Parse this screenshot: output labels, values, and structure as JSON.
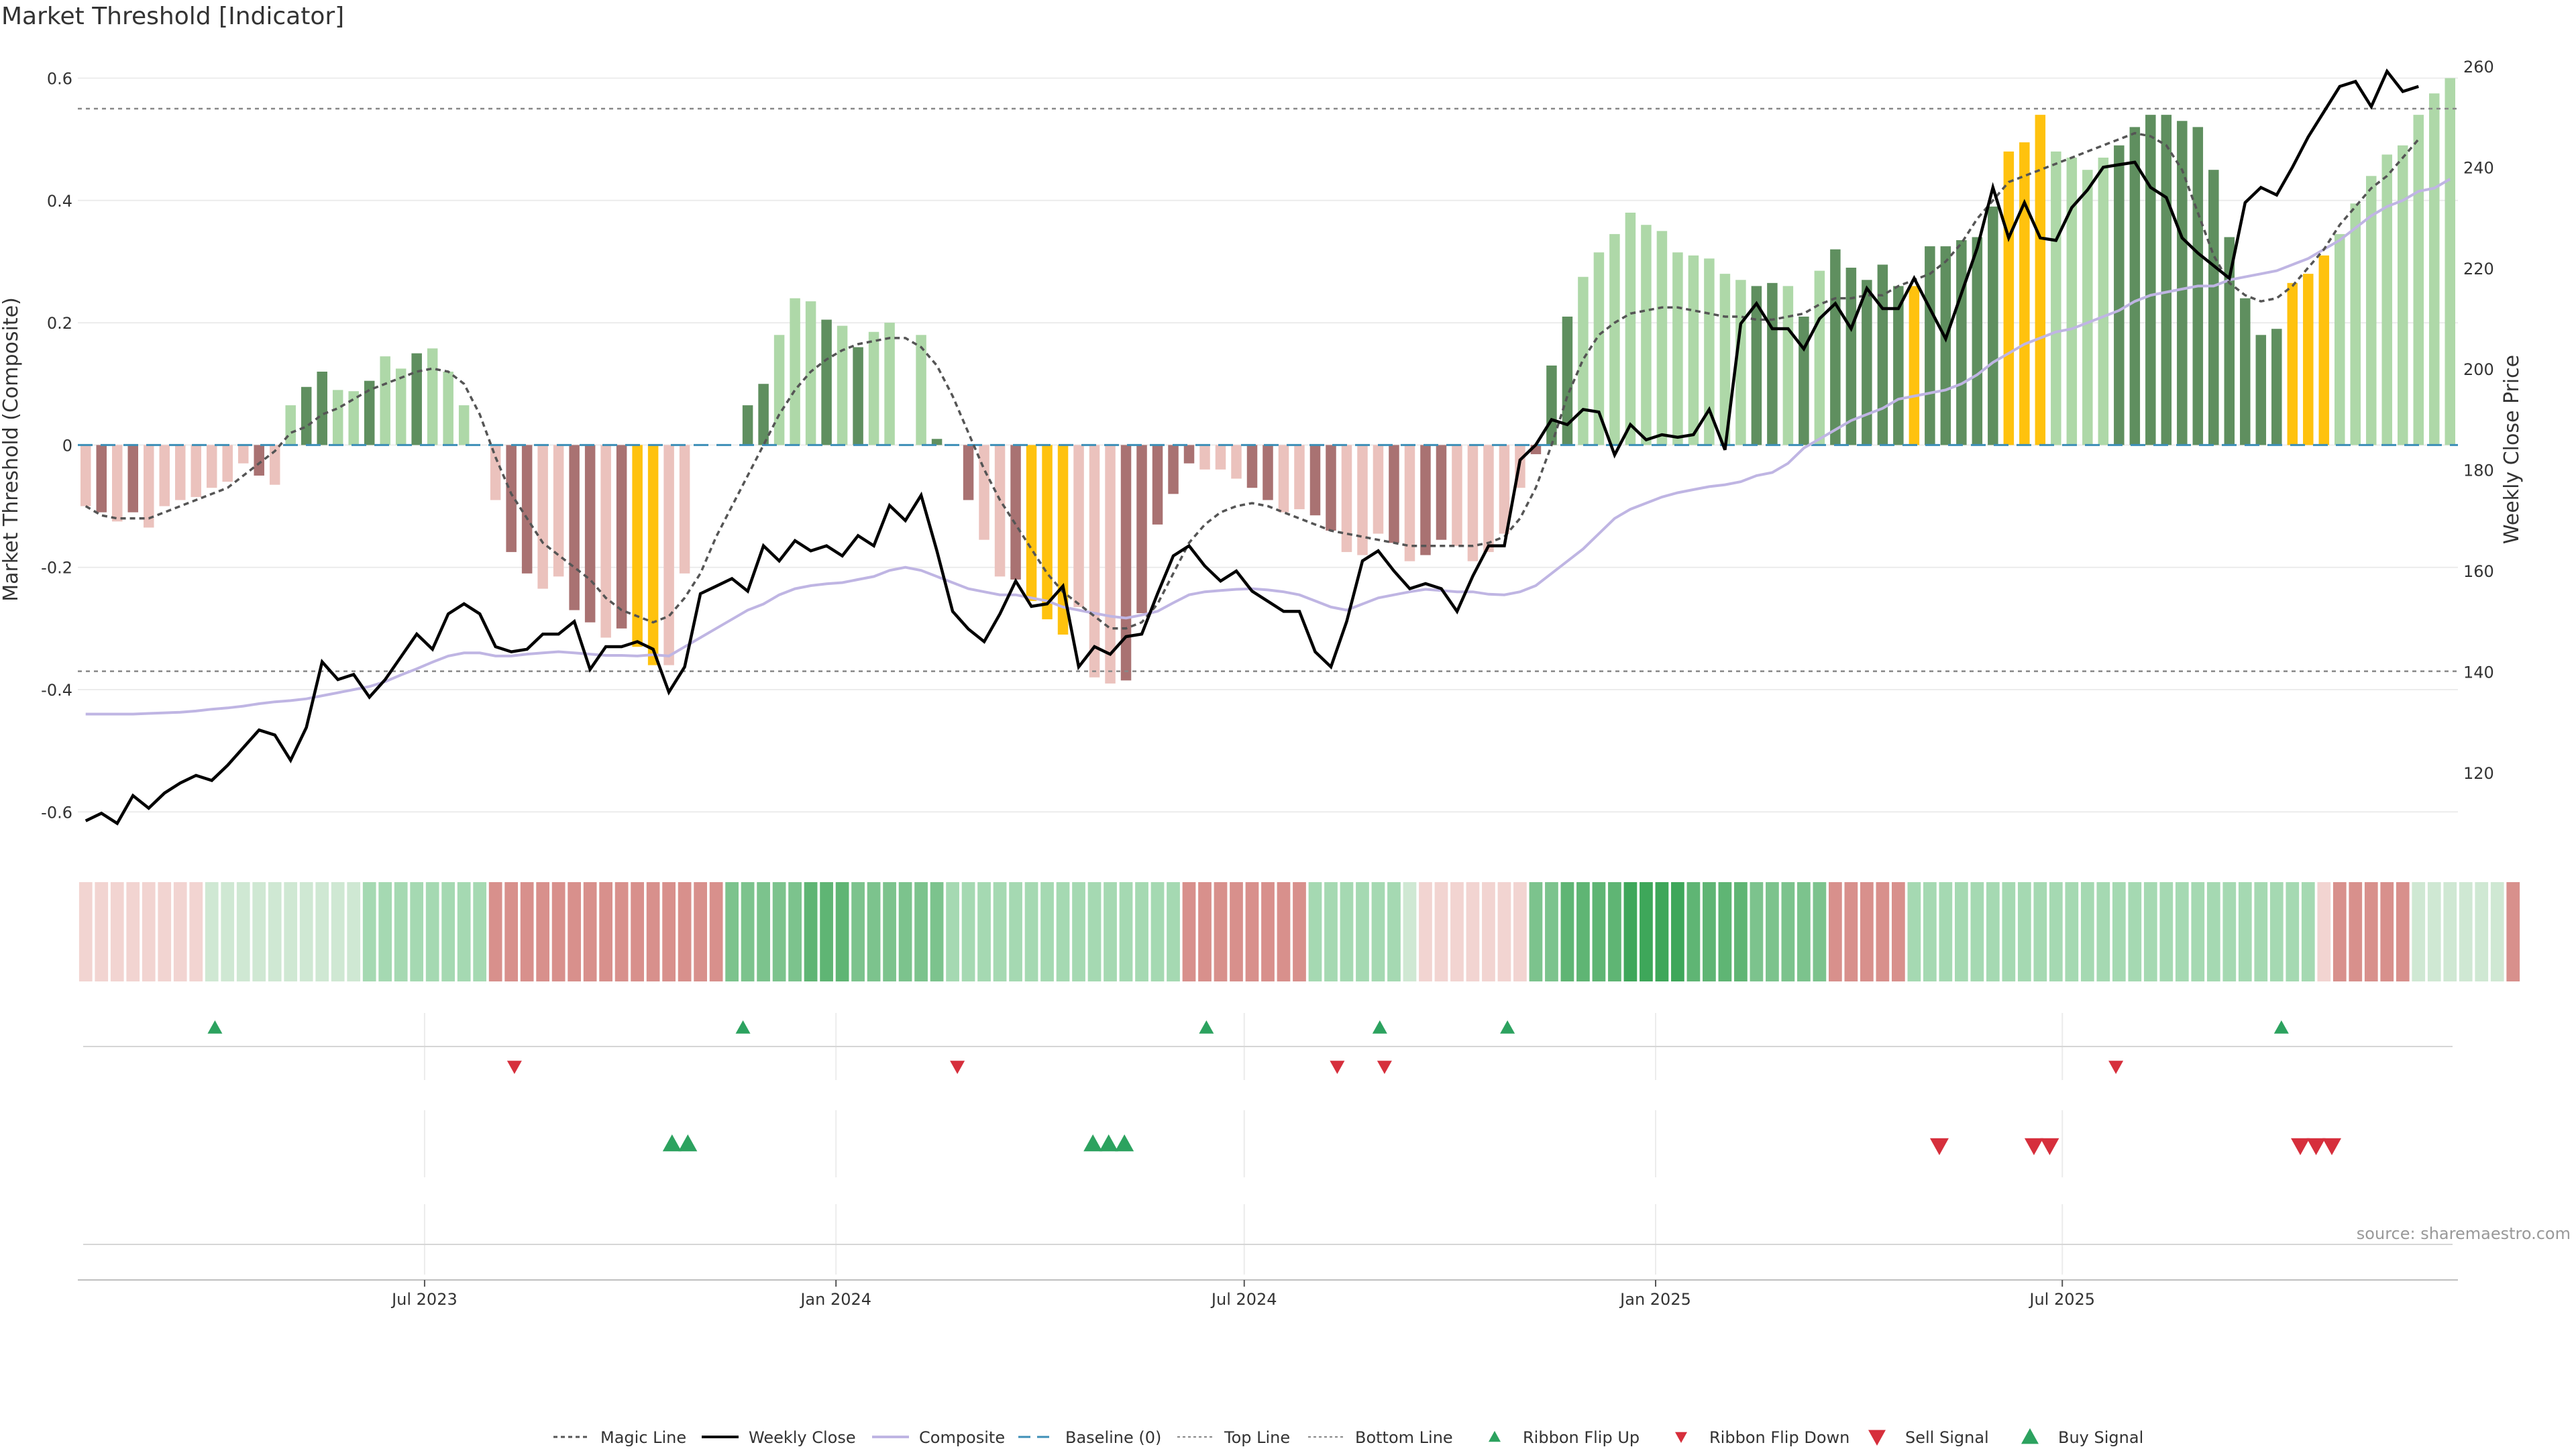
{
  "title": "Market Threshold [Indicator]",
  "source": "source: sharemaestro.com",
  "colors": {
    "pos_strong": "#5f8f5f",
    "pos_light": "#aed8a8",
    "neg_strong": "#a97272",
    "neg_light": "#ebc2bd",
    "extreme": "#ffc20e",
    "weekly": "#000000",
    "composite": "#bfb5e3",
    "magic": "#555555",
    "baseline": "#3d8fb7",
    "band_line": "#888888",
    "signal_up": "#2ca25f",
    "signal_down": "#d62f3c",
    "grid": "#ececec"
  },
  "chart_data": {
    "type": "bar",
    "title": "Market Threshold [Indicator]",
    "ylabel": "Market Threshold (Composite)",
    "y2label": "Weekly Close Price",
    "ylim": [
      -0.66,
      0.64
    ],
    "y2lim": [
      105,
      262.5
    ],
    "yticks": [
      -0.6,
      -0.4,
      -0.2,
      0,
      0.2,
      0.4,
      0.6
    ],
    "y2ticks": [
      120,
      140,
      160,
      180,
      200,
      220,
      240,
      260
    ],
    "top_line": 0.55,
    "bottom_line": -0.37,
    "x_start": "2023-02-13",
    "x_ticks": [
      {
        "label": "Jul 2023",
        "week": 21.5
      },
      {
        "label": "Jan 2024",
        "week": 47.6
      },
      {
        "label": "Jul 2024",
        "week": 73.5
      },
      {
        "label": "Jan 2025",
        "week": 99.6
      },
      {
        "label": "Jul 2025",
        "week": 125.4
      }
    ],
    "composite_bars": [
      -0.1,
      -0.11,
      -0.125,
      -0.11,
      -0.135,
      -0.1,
      -0.09,
      -0.085,
      -0.07,
      -0.06,
      -0.03,
      -0.05,
      -0.065,
      0.065,
      0.095,
      0.12,
      0.09,
      0.088,
      0.105,
      0.145,
      0.125,
      0.15,
      0.158,
      0.12,
      0.065,
      0.0,
      -0.09,
      -0.175,
      -0.21,
      -0.235,
      -0.215,
      -0.27,
      -0.29,
      -0.315,
      -0.3,
      -0.33,
      -0.36,
      -0.36,
      -0.21,
      -0.07,
      0.0,
      0.0,
      0.065,
      0.1,
      0.18,
      0.24,
      0.235,
      0.205,
      0.195,
      0.16,
      0.185,
      0.2,
      0.235,
      0.18,
      0.01,
      0.0,
      -0.09,
      -0.155,
      -0.215,
      -0.22,
      -0.255,
      -0.285,
      -0.31,
      -0.265,
      -0.38,
      -0.39,
      -0.385,
      -0.275,
      -0.13,
      -0.08,
      -0.03,
      -0.04,
      -0.04,
      -0.055,
      -0.07,
      -0.09,
      -0.11,
      -0.105,
      -0.115,
      -0.14,
      -0.175,
      -0.18,
      -0.145,
      -0.16,
      -0.19,
      -0.18,
      -0.155,
      -0.165,
      -0.19,
      -0.175,
      -0.145,
      -0.07,
      -0.015,
      0.13,
      0.21,
      0.275,
      0.315,
      0.345,
      0.38,
      0.36,
      0.35,
      0.315,
      0.31,
      0.305,
      0.28,
      0.27,
      0.26,
      0.265,
      0.26,
      0.21,
      0.285,
      0.32,
      0.29,
      0.27,
      0.295,
      0.26,
      0.26,
      0.325,
      0.325,
      0.335,
      0.34,
      0.39,
      0.48,
      0.495,
      0.54,
      0.48,
      0.47,
      0.45,
      0.47,
      0.49,
      0.52,
      0.54,
      0.54,
      0.53,
      0.52,
      0.45,
      0.34,
      0.24,
      0.18,
      0.19,
      0.265,
      0.28,
      0.31,
      0.345,
      0.395,
      0.44,
      0.475,
      0.49,
      0.54,
      0.575,
      0.6
    ],
    "bar_shades": "LSLSLLLLLLLSLLSSLLSLLSLLLZLSSLLSSLSYYLLZZLSSLLLSLSLLZLSSSLLSYYYLLLSSSSSLLLSSLLSSLLLSLSSLLLLLSSSLLLLLLLLLLLSSLSLSSSSSYSSSSSYYYLLLLSSSSSSSSSSSYYY",
    "weekly_close": [
      110.5,
      112,
      110,
      115.5,
      113,
      116,
      118,
      119.5,
      118.5,
      121.5,
      125,
      128.5,
      127.5,
      122.5,
      129,
      142,
      138.5,
      139.5,
      135,
      138.5,
      143,
      147.5,
      144.5,
      151.5,
      153.5,
      151.5,
      145,
      144,
      144.5,
      147.5,
      147.5,
      150,
      140.5,
      145,
      145,
      146,
      144.5,
      136,
      141,
      155.5,
      157,
      158.5,
      156,
      165,
      162,
      166,
      164,
      165,
      163,
      167,
      165,
      173,
      170,
      175,
      164,
      152,
      148.5,
      146,
      151.5,
      158,
      153,
      153.5,
      157,
      141,
      145,
      143.5,
      147,
      147.5,
      155.5,
      163,
      165,
      161,
      158,
      160,
      156,
      154,
      152,
      152,
      144,
      141,
      150,
      162,
      164,
      160,
      156.5,
      157.5,
      156.5,
      152,
      159,
      165,
      165,
      182,
      185,
      190,
      189,
      192,
      191.5,
      183,
      189,
      186,
      187,
      186.5,
      187,
      192,
      184,
      209,
      213,
      208,
      208,
      204,
      210,
      213,
      208,
      216,
      212,
      212,
      218,
      212,
      206,
      215,
      224,
      236,
      226,
      233,
      226,
      225.5,
      232,
      235.5,
      240,
      240.5,
      241,
      236,
      234,
      226,
      223,
      220.5,
      218,
      233,
      236,
      234.5,
      240,
      246,
      251,
      256,
      257,
      252,
      259,
      255,
      256
    ],
    "composite_line": [
      -0.44,
      -0.44,
      -0.44,
      -0.44,
      -0.439,
      -0.438,
      -0.437,
      -0.435,
      -0.432,
      -0.43,
      -0.427,
      -0.423,
      -0.42,
      -0.418,
      -0.415,
      -0.41,
      -0.405,
      -0.4,
      -0.395,
      -0.387,
      -0.376,
      -0.366,
      -0.355,
      -0.345,
      -0.34,
      -0.34,
      -0.345,
      -0.345,
      -0.342,
      -0.34,
      -0.338,
      -0.34,
      -0.342,
      -0.344,
      -0.344,
      -0.345,
      -0.343,
      -0.345,
      -0.33,
      -0.315,
      -0.3,
      -0.285,
      -0.27,
      -0.26,
      -0.245,
      -0.235,
      -0.23,
      -0.227,
      -0.225,
      -0.22,
      -0.215,
      -0.205,
      -0.2,
      -0.205,
      -0.215,
      -0.225,
      -0.235,
      -0.24,
      -0.245,
      -0.245,
      -0.25,
      -0.255,
      -0.265,
      -0.27,
      -0.275,
      -0.28,
      -0.283,
      -0.278,
      -0.272,
      -0.258,
      -0.245,
      -0.24,
      -0.238,
      -0.236,
      -0.235,
      -0.237,
      -0.24,
      -0.245,
      -0.255,
      -0.265,
      -0.27,
      -0.26,
      -0.25,
      -0.245,
      -0.24,
      -0.236,
      -0.238,
      -0.24,
      -0.24,
      -0.244,
      -0.245,
      -0.24,
      -0.23,
      -0.21,
      -0.19,
      -0.17,
      -0.145,
      -0.12,
      -0.105,
      -0.095,
      -0.085,
      -0.078,
      -0.073,
      -0.068,
      -0.065,
      -0.06,
      -0.05,
      -0.045,
      -0.03,
      -0.005,
      0.01,
      0.025,
      0.04,
      0.05,
      0.06,
      0.075,
      0.08,
      0.085,
      0.09,
      0.1,
      0.115,
      0.135,
      0.15,
      0.165,
      0.175,
      0.185,
      0.19,
      0.2,
      0.21,
      0.22,
      0.235,
      0.245,
      0.25,
      0.255,
      0.26,
      0.26,
      0.27,
      0.275,
      0.28,
      0.285,
      0.295,
      0.305,
      0.32,
      0.335,
      0.355,
      0.375,
      0.39,
      0.4,
      0.415,
      0.42,
      0.435
    ],
    "magic_line": [
      -0.1,
      -0.115,
      -0.12,
      -0.12,
      -0.12,
      -0.11,
      -0.1,
      -0.09,
      -0.08,
      -0.07,
      -0.05,
      -0.03,
      -0.01,
      0.02,
      0.03,
      0.05,
      0.06,
      0.075,
      0.09,
      0.1,
      0.11,
      0.12,
      0.125,
      0.12,
      0.1,
      0.05,
      -0.02,
      -0.08,
      -0.12,
      -0.16,
      -0.18,
      -0.2,
      -0.22,
      -0.25,
      -0.27,
      -0.28,
      -0.29,
      -0.28,
      -0.25,
      -0.21,
      -0.15,
      -0.1,
      -0.05,
      0.0,
      0.05,
      0.09,
      0.12,
      0.14,
      0.155,
      0.165,
      0.17,
      0.175,
      0.175,
      0.16,
      0.13,
      0.08,
      0.02,
      -0.04,
      -0.09,
      -0.13,
      -0.17,
      -0.21,
      -0.24,
      -0.26,
      -0.28,
      -0.3,
      -0.3,
      -0.29,
      -0.26,
      -0.21,
      -0.16,
      -0.13,
      -0.11,
      -0.1,
      -0.095,
      -0.1,
      -0.11,
      -0.12,
      -0.13,
      -0.14,
      -0.145,
      -0.15,
      -0.155,
      -0.16,
      -0.165,
      -0.165,
      -0.165,
      -0.165,
      -0.165,
      -0.16,
      -0.15,
      -0.12,
      -0.07,
      0.0,
      0.08,
      0.14,
      0.18,
      0.2,
      0.215,
      0.22,
      0.225,
      0.225,
      0.22,
      0.215,
      0.21,
      0.21,
      0.205,
      0.205,
      0.21,
      0.215,
      0.23,
      0.24,
      0.24,
      0.245,
      0.245,
      0.26,
      0.27,
      0.28,
      0.3,
      0.33,
      0.37,
      0.4,
      0.43,
      0.44,
      0.45,
      0.46,
      0.47,
      0.48,
      0.49,
      0.5,
      0.51,
      0.505,
      0.49,
      0.45,
      0.38,
      0.31,
      0.265,
      0.245,
      0.235,
      0.24,
      0.26,
      0.29,
      0.32,
      0.36,
      0.39,
      0.42,
      0.44,
      0.47,
      0.5
    ],
    "ribbon_levels": [
      1,
      1,
      1,
      1,
      1,
      1,
      1,
      1,
      2,
      2,
      2,
      2,
      2,
      2,
      2,
      2,
      2,
      2,
      3,
      3,
      3,
      3,
      3,
      3,
      3,
      3,
      4,
      4,
      4,
      4,
      4,
      4,
      4,
      4,
      4,
      4,
      4,
      4,
      4,
      4,
      4,
      5,
      5,
      5,
      5,
      5,
      6,
      6,
      6,
      5,
      5,
      5,
      5,
      5,
      5,
      3,
      3,
      3,
      3,
      3,
      3,
      3,
      3,
      3,
      3,
      3,
      3,
      3,
      3,
      3,
      4,
      4,
      4,
      4,
      4,
      4,
      4,
      4,
      3,
      3,
      3,
      3,
      3,
      3,
      2,
      1,
      1,
      1,
      1,
      1,
      1,
      1,
      5,
      5,
      6,
      6,
      6,
      6,
      7,
      7,
      7,
      7,
      6,
      6,
      6,
      6,
      5,
      5,
      5,
      5,
      5,
      4,
      4,
      4,
      4,
      4,
      3,
      3,
      3,
      3,
      3,
      3,
      3,
      3,
      3,
      3,
      3,
      3,
      3,
      3,
      3,
      3,
      3,
      3,
      3,
      3,
      3,
      3,
      3,
      3,
      3,
      3,
      1,
      4,
      4,
      4,
      4,
      4,
      2,
      2,
      2,
      2,
      2,
      2,
      4
    ],
    "ribbon_flip_up": [
      8.2,
      41.7,
      71.1,
      82.1,
      90.2,
      139.3
    ],
    "ribbon_flip_down": [
      27.2,
      55.3,
      79.4,
      82.4,
      128.8
    ],
    "buy_signal": [
      37.2,
      38.2,
      63.9,
      64.9,
      65.9
    ],
    "sell_signal": [
      117.6,
      123.6,
      124.6,
      140.5,
      141.5,
      142.5
    ],
    "legend": [
      "Magic Line",
      "Weekly Close",
      "Composite",
      "Baseline (0)",
      "Top Line",
      "Bottom Line",
      "Ribbon Flip Up",
      "Ribbon Flip Down",
      "Sell Signal",
      "Buy Signal"
    ],
    "legend_placement": "bottom",
    "grid": true
  }
}
